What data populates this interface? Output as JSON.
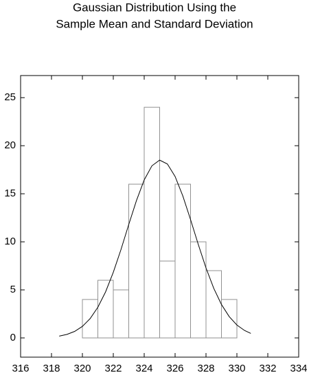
{
  "chart_data": {
    "type": "histogram",
    "title": [
      "Gaussian Distribution Using the",
      "Sample Mean and Standard Deviation"
    ],
    "bins": [
      320,
      321,
      322,
      323,
      324,
      325,
      326,
      327,
      328,
      329,
      330
    ],
    "counts": [
      4,
      6,
      5,
      16,
      24,
      8,
      16,
      10,
      7,
      4
    ],
    "bar_color": "#909090",
    "curve": {
      "type": "line",
      "color": "#000000",
      "x": [
        318.5,
        319,
        319.5,
        320,
        320.5,
        321,
        321.5,
        322,
        322.5,
        323,
        323.5,
        324,
        324.5,
        325,
        325.5,
        326,
        326.5,
        327,
        327.5,
        328,
        328.5,
        329,
        329.5,
        330,
        330.5,
        330.9
      ],
      "values": [
        0.19,
        0.37,
        0.68,
        1.2,
        2.01,
        3.19,
        4.79,
        6.83,
        9.21,
        11.8,
        14.3,
        16.44,
        17.91,
        18.5,
        18.1,
        16.8,
        14.77,
        12.31,
        9.73,
        7.28,
        5.17,
        3.48,
        2.22,
        1.34,
        0.77,
        0.47
      ]
    },
    "xlim": [
      316,
      334
    ],
    "ylim": [
      -2,
      27.3
    ],
    "xticks": [
      316,
      318,
      320,
      322,
      324,
      326,
      328,
      330,
      332,
      334
    ],
    "yticks": [
      0,
      5,
      10,
      15,
      20,
      25
    ]
  }
}
